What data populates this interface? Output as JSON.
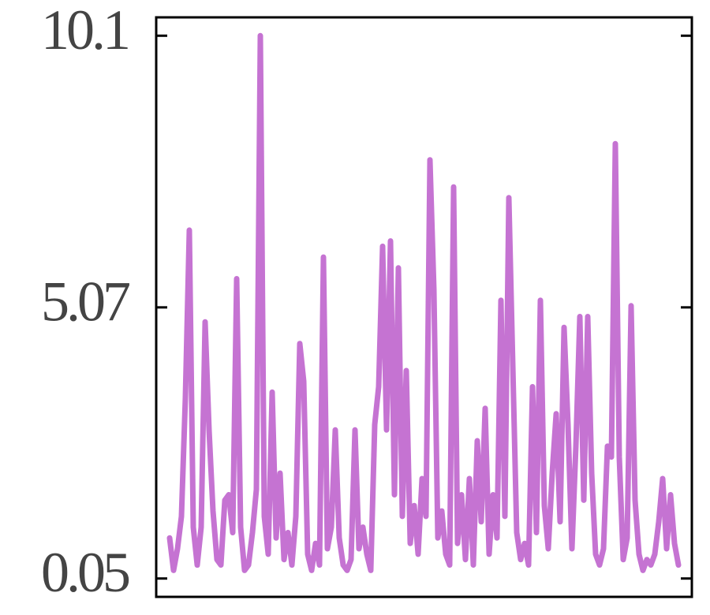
{
  "chart_data": {
    "type": "line",
    "values": [
      0.8,
      0.2,
      0.6,
      1.2,
      3.4,
      6.5,
      1.0,
      0.3,
      1.0,
      4.8,
      2.8,
      1.3,
      0.4,
      0.3,
      1.5,
      1.6,
      0.9,
      5.6,
      1.0,
      0.2,
      0.3,
      0.9,
      1.7,
      10.1,
      1.2,
      0.5,
      3.5,
      0.8,
      2.0,
      0.4,
      0.9,
      0.3,
      1.2,
      4.4,
      3.7,
      0.5,
      0.2,
      0.7,
      0.3,
      6.0,
      0.6,
      1.0,
      2.8,
      0.8,
      0.3,
      0.2,
      0.4,
      2.8,
      0.6,
      1.0,
      0.5,
      0.2,
      2.9,
      3.6,
      6.2,
      2.8,
      6.3,
      1.6,
      5.8,
      1.2,
      3.9,
      0.7,
      1.4,
      0.5,
      1.9,
      1.2,
      7.8,
      5.4,
      0.8,
      1.3,
      0.5,
      0.3,
      7.3,
      0.7,
      1.6,
      0.4,
      1.9,
      0.3,
      2.6,
      1.1,
      3.2,
      0.5,
      1.6,
      0.8,
      5.2,
      1.2,
      7.1,
      4.0,
      0.9,
      0.4,
      0.7,
      0.3,
      3.6,
      0.9,
      5.2,
      1.4,
      0.6,
      2.0,
      3.1,
      1.1,
      4.7,
      2.9,
      0.6,
      2.5,
      4.9,
      1.5,
      4.9,
      2.0,
      0.5,
      0.3,
      0.6,
      2.5,
      2.3,
      8.1,
      2.3,
      0.4,
      0.8,
      5.1,
      1.5,
      0.5,
      0.2,
      0.4,
      0.3,
      0.5,
      1.1,
      1.9,
      0.6,
      1.6,
      0.7,
      0.3
    ],
    "color": "#c573d2",
    "ylim": [
      -0.29,
      10.44
    ],
    "yticks": [
      0.05,
      5.07,
      10.1
    ]
  }
}
